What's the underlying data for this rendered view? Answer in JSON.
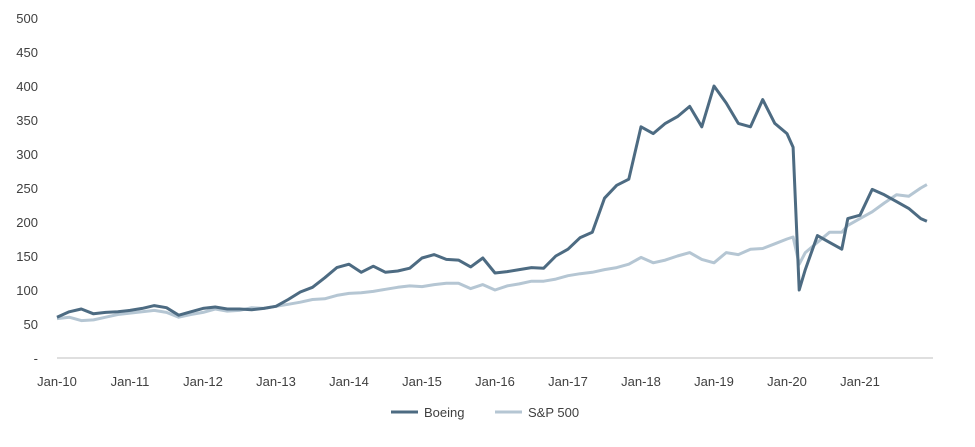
{
  "chart_data": {
    "type": "line",
    "title": "",
    "xlabel": "",
    "ylabel": "",
    "ylim": [
      0,
      500
    ],
    "yticks": [
      0,
      50,
      100,
      150,
      200,
      250,
      300,
      350,
      400,
      450,
      500
    ],
    "ytick_labels": [
      "-",
      "50",
      "100",
      "150",
      "200",
      "250",
      "300",
      "350",
      "400",
      "450",
      "500"
    ],
    "x_tick_labels": [
      "Jan-10",
      "Jan-11",
      "Jan-12",
      "Jan-13",
      "Jan-14",
      "Jan-15",
      "Jan-16",
      "Jan-17",
      "Jan-18",
      "Jan-19",
      "Jan-20",
      "Jan-21"
    ],
    "grid": false,
    "legend_position": "bottom-center",
    "series": [
      {
        "name": "Boeing",
        "color": "#4d6b82",
        "points": [
          [
            "2010-01",
            60
          ],
          [
            "2010-03",
            68
          ],
          [
            "2010-05",
            72
          ],
          [
            "2010-07",
            65
          ],
          [
            "2010-09",
            67
          ],
          [
            "2010-11",
            68
          ],
          [
            "2011-01",
            70
          ],
          [
            "2011-03",
            73
          ],
          [
            "2011-05",
            77
          ],
          [
            "2011-07",
            74
          ],
          [
            "2011-09",
            63
          ],
          [
            "2011-11",
            68
          ],
          [
            "2012-01",
            73
          ],
          [
            "2012-03",
            75
          ],
          [
            "2012-05",
            72
          ],
          [
            "2012-07",
            72
          ],
          [
            "2012-09",
            71
          ],
          [
            "2012-11",
            73
          ],
          [
            "2013-01",
            76
          ],
          [
            "2013-03",
            86
          ],
          [
            "2013-05",
            97
          ],
          [
            "2013-07",
            104
          ],
          [
            "2013-09",
            118
          ],
          [
            "2013-11",
            133
          ],
          [
            "2014-01",
            138
          ],
          [
            "2014-03",
            126
          ],
          [
            "2014-05",
            135
          ],
          [
            "2014-07",
            126
          ],
          [
            "2014-09",
            128
          ],
          [
            "2014-11",
            132
          ],
          [
            "2015-01",
            147
          ],
          [
            "2015-03",
            152
          ],
          [
            "2015-05",
            145
          ],
          [
            "2015-07",
            144
          ],
          [
            "2015-09",
            134
          ],
          [
            "2015-11",
            147
          ],
          [
            "2016-01",
            125
          ],
          [
            "2016-03",
            127
          ],
          [
            "2016-05",
            130
          ],
          [
            "2016-07",
            133
          ],
          [
            "2016-09",
            132
          ],
          [
            "2016-11",
            150
          ],
          [
            "2017-01",
            160
          ],
          [
            "2017-03",
            177
          ],
          [
            "2017-05",
            185
          ],
          [
            "2017-07",
            235
          ],
          [
            "2017-09",
            254
          ],
          [
            "2017-11",
            263
          ],
          [
            "2018-01",
            340
          ],
          [
            "2018-03",
            330
          ],
          [
            "2018-05",
            345
          ],
          [
            "2018-07",
            355
          ],
          [
            "2018-09",
            370
          ],
          [
            "2018-11",
            340
          ],
          [
            "2019-01",
            400
          ],
          [
            "2019-03",
            375
          ],
          [
            "2019-05",
            345
          ],
          [
            "2019-07",
            340
          ],
          [
            "2019-09",
            380
          ],
          [
            "2019-11",
            345
          ],
          [
            "2020-01",
            330
          ],
          [
            "2020-02",
            310
          ],
          [
            "2020-03",
            100
          ],
          [
            "2020-04",
            130
          ],
          [
            "2020-06",
            180
          ],
          [
            "2020-08",
            170
          ],
          [
            "2020-10",
            160
          ],
          [
            "2020-11",
            205
          ],
          [
            "2021-01",
            210
          ],
          [
            "2021-03",
            248
          ],
          [
            "2021-05",
            240
          ],
          [
            "2021-07",
            230
          ],
          [
            "2021-09",
            220
          ],
          [
            "2021-11",
            205
          ],
          [
            "2021-12",
            201
          ]
        ]
      },
      {
        "name": "S&P 500",
        "color": "#b5c6d3",
        "points": [
          [
            "2010-01",
            58
          ],
          [
            "2010-03",
            60
          ],
          [
            "2010-05",
            55
          ],
          [
            "2010-07",
            56
          ],
          [
            "2010-09",
            60
          ],
          [
            "2010-11",
            64
          ],
          [
            "2011-01",
            66
          ],
          [
            "2011-03",
            68
          ],
          [
            "2011-05",
            70
          ],
          [
            "2011-07",
            67
          ],
          [
            "2011-09",
            60
          ],
          [
            "2011-11",
            64
          ],
          [
            "2012-01",
            67
          ],
          [
            "2012-03",
            72
          ],
          [
            "2012-05",
            69
          ],
          [
            "2012-07",
            70
          ],
          [
            "2012-09",
            74
          ],
          [
            "2012-11",
            73
          ],
          [
            "2013-01",
            76
          ],
          [
            "2013-03",
            79
          ],
          [
            "2013-05",
            82
          ],
          [
            "2013-07",
            86
          ],
          [
            "2013-09",
            87
          ],
          [
            "2013-11",
            92
          ],
          [
            "2014-01",
            95
          ],
          [
            "2014-03",
            96
          ],
          [
            "2014-05",
            98
          ],
          [
            "2014-07",
            101
          ],
          [
            "2014-09",
            104
          ],
          [
            "2014-11",
            106
          ],
          [
            "2015-01",
            105
          ],
          [
            "2015-03",
            108
          ],
          [
            "2015-05",
            110
          ],
          [
            "2015-07",
            110
          ],
          [
            "2015-09",
            102
          ],
          [
            "2015-11",
            108
          ],
          [
            "2016-01",
            100
          ],
          [
            "2016-03",
            106
          ],
          [
            "2016-05",
            109
          ],
          [
            "2016-07",
            113
          ],
          [
            "2016-09",
            113
          ],
          [
            "2016-11",
            116
          ],
          [
            "2017-01",
            121
          ],
          [
            "2017-03",
            124
          ],
          [
            "2017-05",
            126
          ],
          [
            "2017-07",
            130
          ],
          [
            "2017-09",
            133
          ],
          [
            "2017-11",
            138
          ],
          [
            "2018-01",
            148
          ],
          [
            "2018-03",
            140
          ],
          [
            "2018-05",
            144
          ],
          [
            "2018-07",
            150
          ],
          [
            "2018-09",
            155
          ],
          [
            "2018-11",
            145
          ],
          [
            "2019-01",
            140
          ],
          [
            "2019-03",
            155
          ],
          [
            "2019-05",
            152
          ],
          [
            "2019-07",
            160
          ],
          [
            "2019-09",
            161
          ],
          [
            "2019-11",
            168
          ],
          [
            "2020-01",
            175
          ],
          [
            "2020-02",
            178
          ],
          [
            "2020-03",
            138
          ],
          [
            "2020-04",
            155
          ],
          [
            "2020-06",
            170
          ],
          [
            "2020-08",
            185
          ],
          [
            "2020-10",
            185
          ],
          [
            "2020-11",
            195
          ],
          [
            "2021-01",
            205
          ],
          [
            "2021-03",
            215
          ],
          [
            "2021-05",
            228
          ],
          [
            "2021-07",
            240
          ],
          [
            "2021-09",
            238
          ],
          [
            "2021-11",
            250
          ],
          [
            "2021-12",
            255
          ]
        ]
      }
    ]
  }
}
